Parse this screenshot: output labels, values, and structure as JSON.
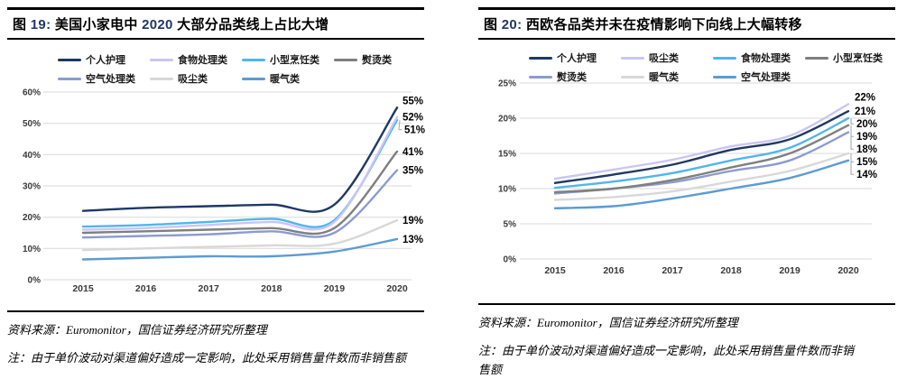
{
  "colors": {
    "title_number": "#1F3864",
    "grid": "#D9D9D9",
    "axis_label": "#3A3A3A",
    "data_label": "#000000",
    "leader": "#A6A6A6",
    "rule": "#000000"
  },
  "panels": [
    {
      "title_full": "图 19: 美国小家电中 2020 大部分品类线上占比大增",
      "title_parts": [
        [
          "图 ",
          "k"
        ],
        [
          "19:",
          "b"
        ],
        [
          " 美国小家电中 ",
          "k"
        ],
        [
          "2020",
          "b"
        ],
        [
          " 大部分品类线上占比大增",
          "k"
        ]
      ],
      "source": "资料来源：Euromonitor，国信证券经济研究所整理",
      "note": "注：由于单价波动对渠道偏好造成一定影响，此处采用销售量件数而非销售额"
    },
    {
      "title_full": "图 20: 西欧各品类并未在疫情影响下向线上大幅转移",
      "title_parts": [
        [
          "图 ",
          "k"
        ],
        [
          "20:",
          "b"
        ],
        [
          " 西欧各品类并未在疫情影响下向线上大幅转移",
          "k"
        ]
      ],
      "source": "资料来源：Euromonitor，国信证券经济研究所整理",
      "note": "注：由于单价波动对渠道偏好造成一定影响，此处采用销售量件数而非销售额"
    }
  ],
  "chart_data": [
    {
      "type": "line",
      "title": "美国小家电中 2020 大部分品类线上占比大增",
      "x": [
        2015,
        2016,
        2017,
        2018,
        2019,
        2020
      ],
      "xlabel": "",
      "ylabel": "",
      "ylim": [
        0,
        60
      ],
      "ytick": 10,
      "grid": "horizontal",
      "legend_position": "top",
      "legend_rows": [
        4,
        3
      ],
      "series": [
        {
          "name": "个人护理",
          "color": "#1F3864",
          "values": [
            22,
            23,
            23.5,
            24,
            24,
            55
          ],
          "end_label": "55%"
        },
        {
          "name": "食物处理类",
          "color": "#C9C6F3",
          "values": [
            16,
            16.5,
            17.5,
            18.5,
            18.5,
            52
          ],
          "end_label": "52%"
        },
        {
          "name": "小型烹饪类",
          "color": "#4FB5F0",
          "values": [
            17,
            17.5,
            18.5,
            19.5,
            19,
            51
          ],
          "end_label": "51%"
        },
        {
          "name": "熨烫类",
          "color": "#7F7F7F",
          "values": [
            15,
            15.5,
            16,
            16.5,
            16.5,
            41
          ],
          "end_label": "41%"
        },
        {
          "name": "空气处理类",
          "color": "#8A9BD1",
          "values": [
            13.5,
            14,
            14.5,
            15.5,
            15,
            35
          ],
          "end_label": "35%"
        },
        {
          "name": "吸尘类",
          "color": "#D8D8D8",
          "values": [
            9.5,
            10,
            10.5,
            11,
            11.5,
            19
          ],
          "end_label": "19%"
        },
        {
          "name": "暖气类",
          "color": "#5B9BD5",
          "values": [
            6.5,
            7,
            7.5,
            7.5,
            9,
            13
          ],
          "end_label": "13%"
        }
      ]
    },
    {
      "type": "line",
      "title": "西欧各品类并未在疫情影响下向线上大幅转移",
      "x": [
        2015,
        2016,
        2017,
        2018,
        2019,
        2020
      ],
      "xlabel": "",
      "ylabel": "",
      "ylim": [
        0,
        25
      ],
      "ytick": 5,
      "grid": "horizontal",
      "legend_position": "top",
      "legend_rows": [
        4,
        3
      ],
      "series": [
        {
          "name": "个人护理",
          "color": "#1F3864",
          "values": [
            10.8,
            12,
            13.4,
            15.5,
            17,
            21
          ],
          "end_label": "21%"
        },
        {
          "name": "吸尘类",
          "color": "#C9C6F3",
          "values": [
            11.4,
            12.7,
            14.1,
            16,
            17.5,
            22
          ],
          "end_label": "22%"
        },
        {
          "name": "食物处理类",
          "color": "#4FB5F0",
          "values": [
            10.1,
            11,
            12.2,
            14,
            15.8,
            20
          ],
          "end_label": "20%"
        },
        {
          "name": "小型烹饪类",
          "color": "#7F7F7F",
          "values": [
            9.5,
            10,
            11.2,
            13,
            15,
            19
          ],
          "end_label": "19%"
        },
        {
          "name": "熨烫类",
          "color": "#8A9BD1",
          "values": [
            9.3,
            10,
            10.9,
            12.5,
            14,
            18
          ],
          "end_label": "18%"
        },
        {
          "name": "暖气类",
          "color": "#D8D8D8",
          "values": [
            8.4,
            8.8,
            9.6,
            11,
            12.5,
            15
          ],
          "end_label": "15%"
        },
        {
          "name": "空气处理类",
          "color": "#5B9BD5",
          "values": [
            7.2,
            7.5,
            8.6,
            10,
            11.5,
            14
          ],
          "end_label": "14%"
        }
      ]
    }
  ]
}
